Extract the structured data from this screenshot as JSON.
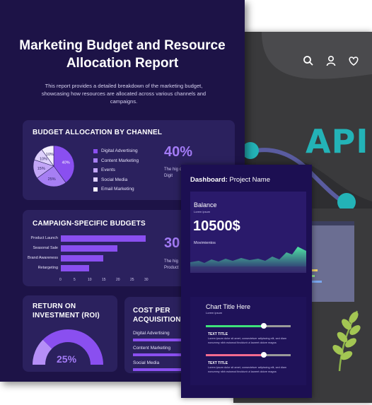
{
  "report": {
    "title": "Marketing Budget and Resource Allocation Report",
    "description": "This report provides a detailed breakdown of the marketing budget, showcasing how resources are allocated across various channels and campaigns.",
    "channel_panel": {
      "heading": "BUDGET ALLOCATION BY CHANNEL",
      "big_percent": "40%",
      "note": "The hig on Digit"
    },
    "campaign_panel": {
      "heading": "CAMPAIGN-SPECIFIC BUDGETS",
      "big_value": "30",
      "note": "The hig Product"
    },
    "roi_panel": {
      "heading_line1": "RETURN ON",
      "heading_line2": "INVESTMENT (ROI)",
      "value": "25%",
      "value_fraction": 0.25
    },
    "cpa_panel": {
      "heading_line1": "COST PER",
      "heading_line2": "ACQUISITION (",
      "items": [
        {
          "label": "Digital Advertising",
          "fill": 0.55
        },
        {
          "label": "Content Marketing",
          "fill": 0.5
        },
        {
          "label": "Social Media",
          "fill": 0.45
        }
      ]
    }
  },
  "chart_data": [
    {
      "type": "pie",
      "title": "BUDGET ALLOCATION BY CHANNEL",
      "slices": [
        {
          "label": "Digital Advertising",
          "value": 40,
          "color": "#8a4ff0",
          "text": "40%"
        },
        {
          "label": "Content Marketing",
          "value": 25,
          "color": "#a67ff3",
          "text": "25%"
        },
        {
          "label": "Events",
          "value": 15,
          "color": "#c2a6f7",
          "text": "15%"
        },
        {
          "label": "Social Media",
          "value": 10,
          "color": "#ddd0fb",
          "text": "10%"
        },
        {
          "label": "Email Marketing",
          "value": 10,
          "color": "#f4f0fe",
          "text": "10%"
        }
      ]
    },
    {
      "type": "bar",
      "orientation": "horizontal",
      "title": "CAMPAIGN-SPECIFIC BUDGETS",
      "categories": [
        "Product Launch",
        "Seasonal Sale",
        "Brand Awareness",
        "Retargeting"
      ],
      "values": [
        30,
        20,
        15,
        10
      ],
      "ticks": [
        "0",
        "5",
        "10",
        "15",
        "20",
        "25",
        "30"
      ],
      "xlim": [
        0,
        30
      ]
    }
  ],
  "dashboard": {
    "title_bold": "Dashboard:",
    "title_rest": " Project Name",
    "balance": {
      "label": "Balance",
      "sub": "Lorem ipsum",
      "value": "10500$",
      "movements": "Movimientos"
    },
    "chart": {
      "title": "Chart Title Here",
      "sub": "Lorem ipsum",
      "items": [
        {
          "title": "TEXT TITLE",
          "fill": 0.68,
          "color": "#3ee27a",
          "body": "Lorem ipsum dolor sit amet, consectetuer adipiscing elit, sed diam nonummy nibh euismod tincidunt ut laoreet dolore magna"
        },
        {
          "title": "TEXT TITLE",
          "fill": 0.68,
          "color": "#f46b8f",
          "body": "Lorem ipsum dolor sit amet, consectetuer adipiscing elit, sed diam nonummy nibh euismod tincidunt ut laoreet dolore magna"
        }
      ]
    }
  },
  "api_card": {
    "text": "API",
    "icons": [
      "search-icon",
      "user-icon",
      "heart-icon"
    ]
  }
}
